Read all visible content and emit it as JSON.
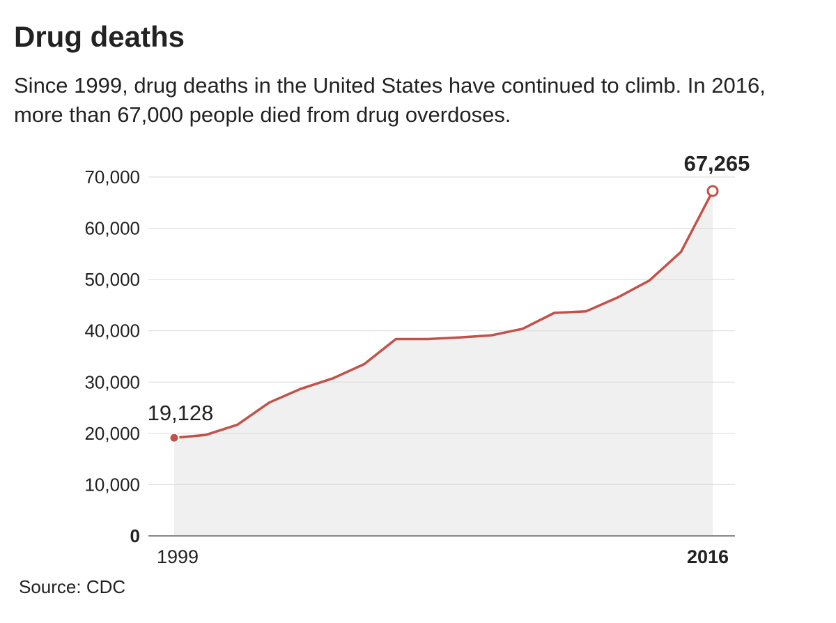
{
  "chart_data": {
    "type": "area",
    "title": "Drug deaths",
    "subtitle": "Since 1999, drug deaths in the United States have continued to climb. In 2016, more than 67,000 people died from drug overdoses.",
    "x": [
      1999,
      2000,
      2001,
      2002,
      2003,
      2004,
      2005,
      2006,
      2007,
      2008,
      2009,
      2010,
      2011,
      2012,
      2013,
      2014,
      2015,
      2016
    ],
    "values": [
      19128,
      19700,
      21700,
      26000,
      28700,
      30700,
      33500,
      38400,
      38400,
      38700,
      39100,
      40400,
      43500,
      43800,
      46500,
      49800,
      55400,
      67265
    ],
    "ylim": [
      0,
      70000
    ],
    "y_ticks": [
      {
        "value": 0,
        "label": "0"
      },
      {
        "value": 10000,
        "label": "10,000"
      },
      {
        "value": 20000,
        "label": "20,000"
      },
      {
        "value": 30000,
        "label": "30,000"
      },
      {
        "value": 40000,
        "label": "40,000"
      },
      {
        "value": 50000,
        "label": "50,000"
      },
      {
        "value": 60000,
        "label": "60,000"
      },
      {
        "value": 70000,
        "label": "70,000"
      }
    ],
    "x_tick_labels": [
      {
        "value": 1999,
        "label": "1999"
      },
      {
        "value": 2016,
        "label": "2016"
      }
    ],
    "annotations": [
      {
        "x": 1999,
        "value": 19128,
        "label": "19,128"
      },
      {
        "x": 2016,
        "value": 67265,
        "label": "67,265"
      }
    ],
    "grid": true,
    "colors": {
      "line": "#c1524a",
      "fill": "#f0f0f0",
      "grid": "#d9d9d9",
      "axis": "#888888",
      "text": "#222222"
    }
  },
  "source": "Source: CDC"
}
